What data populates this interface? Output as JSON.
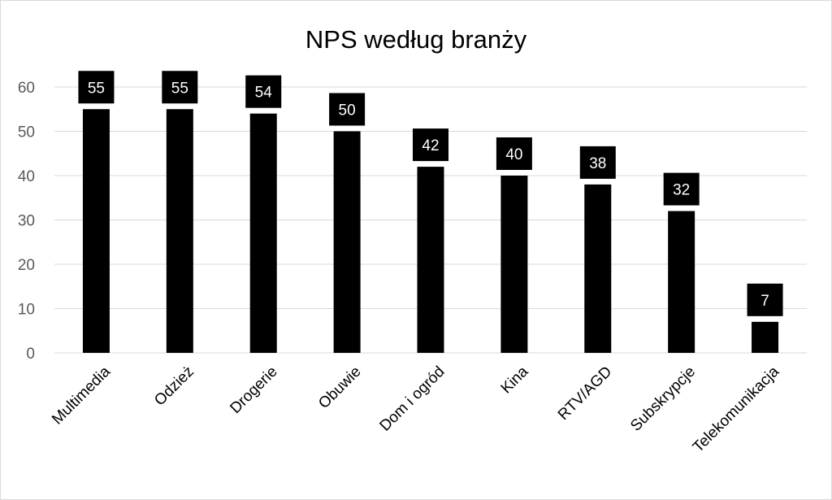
{
  "chart_data": {
    "type": "bar",
    "title": "NPS według branży",
    "xlabel": "",
    "ylabel": "",
    "categories": [
      "Multimedia",
      "Odzież",
      "Drogerie",
      "Obuwie",
      "Dom i ogród",
      "Kina",
      "RTV/AGD",
      "Subskrypcje",
      "Telekomunikacja"
    ],
    "values": [
      55,
      55,
      54,
      50,
      42,
      40,
      38,
      32,
      7
    ],
    "ylim": [
      0,
      60
    ],
    "yticks": [
      0,
      10,
      20,
      30,
      40,
      50,
      60
    ],
    "grid": true,
    "legend": "none",
    "data_labels": true,
    "colors": {
      "bar": "#000000",
      "label_box": "#000000",
      "label_text": "#ffffff",
      "grid": "#d9d9d9",
      "axis_text": "#595959"
    }
  }
}
